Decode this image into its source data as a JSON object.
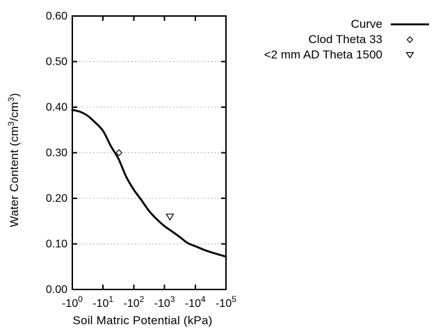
{
  "figure": {
    "background": "#ffffff",
    "foreground": "#000000",
    "grid_color": "#999999"
  },
  "axes": {
    "x": {
      "label": "Soil Matric Potential (kPa)",
      "tick_labels": [
        "-10⁰",
        "-10¹",
        "-10²",
        "-10³",
        "-10⁴",
        "-10⁵"
      ]
    },
    "y": {
      "label": "Water Content (cm³/cm³)",
      "label_parts": {
        "pre": "Water Content (cm",
        "sup1": "3",
        "mid": "/cm",
        "sup2": "3",
        "post": ")"
      },
      "tick_labels": [
        "0.00",
        "0.10",
        "0.20",
        "0.30",
        "0.40",
        "0.50",
        "0.60"
      ]
    }
  },
  "legend": {
    "items": [
      {
        "label": "Curve",
        "marker": "line"
      },
      {
        "label": "Clod Theta 33",
        "marker": "open-diamond"
      },
      {
        "label": "<2 mm AD Theta 1500",
        "marker": "open-down-triangle"
      }
    ]
  },
  "chart_data": {
    "type": "line",
    "title": "",
    "xlabel": "Soil Matric Potential (kPa)",
    "ylabel": "Water Content (cm³/cm³)",
    "x_scale": "log10 of negative matric potential (kPa), decades -10^0 to -10^5",
    "xlim_log10": [
      0,
      5
    ],
    "x_tick_base": "-10",
    "x_tick_exponents": [
      0,
      1,
      2,
      3,
      4,
      5
    ],
    "x_ticks_kpa": [
      -1,
      -10,
      -100,
      -1000,
      -10000,
      -100000
    ],
    "ylim": [
      0,
      0.6
    ],
    "y_ticks": [
      0.0,
      0.1,
      0.2,
      0.3,
      0.4,
      0.5,
      0.6
    ],
    "grid": "horizontal dotted gridlines at 0.10-0.50",
    "legend_position": "top-right outside plot",
    "series": [
      {
        "name": "Curve",
        "type": "line",
        "color": "#000000",
        "points_log10kpa_theta": [
          [
            0.0,
            0.394
          ],
          [
            0.25,
            0.39
          ],
          [
            0.5,
            0.381
          ],
          [
            0.75,
            0.366
          ],
          [
            1.0,
            0.348
          ],
          [
            1.25,
            0.315
          ],
          [
            1.5,
            0.287
          ],
          [
            1.75,
            0.248
          ],
          [
            2.0,
            0.219
          ],
          [
            2.25,
            0.196
          ],
          [
            2.5,
            0.172
          ],
          [
            2.75,
            0.154
          ],
          [
            3.0,
            0.139
          ],
          [
            3.25,
            0.127
          ],
          [
            3.5,
            0.115
          ],
          [
            3.75,
            0.102
          ],
          [
            4.0,
            0.095
          ],
          [
            4.25,
            0.088
          ],
          [
            4.5,
            0.082
          ],
          [
            4.75,
            0.077
          ],
          [
            5.0,
            0.072
          ]
        ]
      },
      {
        "name": "Clod Theta 33",
        "type": "scatter",
        "marker": "open-diamond",
        "color": "#000000",
        "points_kpa_theta": [
          [
            -33,
            0.3
          ]
        ]
      },
      {
        "name": "<2 mm AD Theta 1500",
        "type": "scatter",
        "marker": "open-down-triangle",
        "color": "#000000",
        "points_kpa_theta": [
          [
            -1500,
            0.16
          ]
        ]
      }
    ]
  }
}
